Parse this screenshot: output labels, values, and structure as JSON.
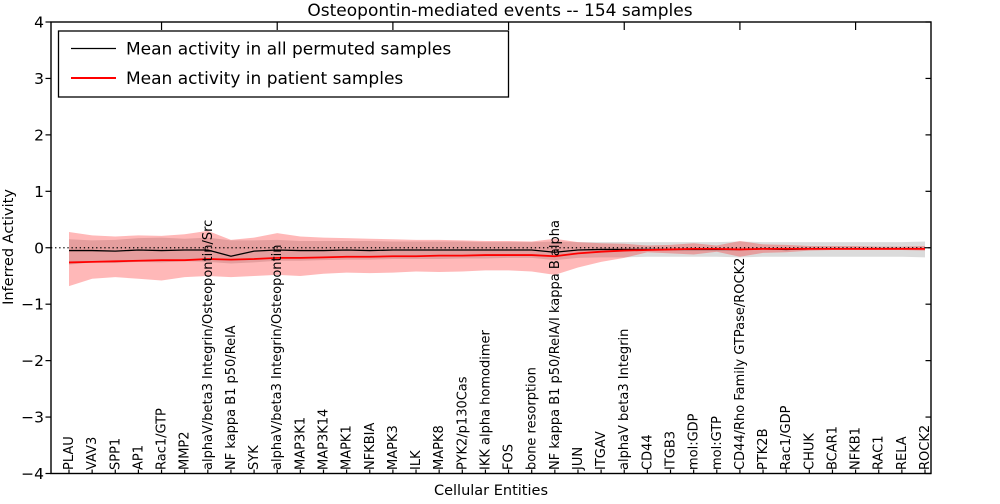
{
  "figure": {
    "title": "Osteopontin-mediated events -- 154 samples",
    "xlabel": "Cellular Entities",
    "ylabel": "Inferred Activity"
  },
  "legend": {
    "entries": [
      {
        "label": "Mean activity in all permuted samples",
        "color": "#000000"
      },
      {
        "label": "Mean activity in patient samples",
        "color": "#ff0000"
      }
    ]
  },
  "chart_data": {
    "type": "line",
    "title": "Osteopontin-mediated events -- 154 samples",
    "xlabel": "Cellular Entities",
    "ylabel": "Inferred Activity",
    "ylim": [
      -4,
      4
    ],
    "yticks": [
      4,
      3,
      2,
      1,
      0,
      -1,
      -2,
      -3,
      -4
    ],
    "ytick_labels": [
      "4",
      "3",
      "2",
      "1",
      "0",
      "−1",
      "−2",
      "−3",
      "−4"
    ],
    "grid": false,
    "legend_position": "upper left",
    "x_tick_label_rotation": 90,
    "top_tick_indices": [
      4,
      9,
      14,
      19,
      24,
      29,
      34
    ],
    "zero_reference_line": {
      "style": "dotted",
      "value": 0,
      "color": "#000000"
    },
    "categories": [
      "PLAU",
      "VAV3",
      "SPP1",
      "AP1",
      "Rac1/GTP",
      "MMP2",
      "alphaV/beta3 Integrin/Osteopontin/Src",
      "NF kappa B1 p50/RelA",
      "SYK",
      "alphaV/beta3 Integrin/Osteopontin",
      "MAP3K1",
      "MAP3K14",
      "MAPK1",
      "NFKBIA",
      "MAPK3",
      "ILK",
      "MAPK8",
      "PYK2/p130Cas",
      "IKK alpha homodimer",
      "FOS",
      "bone resorption",
      "NF kappa B1 p50/RelA/I kappa B alpha",
      "JUN",
      "ITGAV",
      "alphaV beta3 Integrin",
      "CD44",
      "ITGB3",
      "mol:GDP",
      "mol:GTP",
      "CD44/Rho Family GTPase/ROCK2",
      "PTK2B",
      "Rac1/GDP",
      "CHUK",
      "BCAR1",
      "NFKB1",
      "RAC1",
      "RELA",
      "ROCK2"
    ],
    "series": [
      {
        "name": "Permuted samples confidence band",
        "type": "band",
        "color": "#000000",
        "opacity": 0.14,
        "upper": [
          0.15,
          0.13,
          0.14,
          0.17,
          0.18,
          0.16,
          0.18,
          0.13,
          0.13,
          0.14,
          0.12,
          0.12,
          0.12,
          0.12,
          0.11,
          0.11,
          0.11,
          0.11,
          0.1,
          0.1,
          0.1,
          0.11,
          0.1,
          0.1,
          0.1,
          0.1,
          0.1,
          0.1,
          0.1,
          0.11,
          0.1,
          0.1,
          0.1,
          0.1,
          0.1,
          0.1,
          0.1,
          0.11
        ],
        "lower": [
          -0.3,
          -0.26,
          -0.27,
          -0.25,
          -0.26,
          -0.24,
          -0.25,
          -0.28,
          -0.26,
          -0.23,
          -0.23,
          -0.22,
          -0.21,
          -0.21,
          -0.2,
          -0.2,
          -0.2,
          -0.19,
          -0.19,
          -0.18,
          -0.18,
          -0.22,
          -0.18,
          -0.17,
          -0.17,
          -0.16,
          -0.16,
          -0.16,
          -0.16,
          -0.17,
          -0.16,
          -0.16,
          -0.16,
          -0.16,
          -0.16,
          -0.16,
          -0.16,
          -0.17
        ]
      },
      {
        "name": "Patient samples confidence band",
        "type": "band",
        "color": "#ff0000",
        "opacity": 0.28,
        "upper": [
          0.28,
          0.22,
          0.2,
          0.22,
          0.21,
          0.24,
          0.3,
          0.14,
          0.18,
          0.26,
          0.2,
          0.18,
          0.17,
          0.16,
          0.15,
          0.14,
          0.14,
          0.13,
          0.12,
          0.12,
          0.11,
          0.16,
          0.1,
          0.08,
          0.07,
          0.04,
          0.05,
          0.08,
          0.04,
          0.12,
          0.06,
          0.05,
          0.03,
          0.03,
          0.03,
          0.02,
          0.02,
          0.03
        ],
        "lower": [
          -0.68,
          -0.55,
          -0.52,
          -0.55,
          -0.58,
          -0.52,
          -0.5,
          -0.52,
          -0.5,
          -0.48,
          -0.5,
          -0.46,
          -0.44,
          -0.45,
          -0.44,
          -0.42,
          -0.43,
          -0.42,
          -0.4,
          -0.4,
          -0.42,
          -0.48,
          -0.35,
          -0.25,
          -0.18,
          -0.08,
          -0.1,
          -0.12,
          -0.07,
          -0.16,
          -0.09,
          -0.08,
          -0.05,
          -0.04,
          -0.04,
          -0.04,
          -0.04,
          -0.05
        ]
      },
      {
        "name": "Mean activity in all permuted samples",
        "type": "line",
        "color": "#000000",
        "values": [
          -0.05,
          -0.05,
          -0.06,
          -0.04,
          -0.05,
          -0.04,
          -0.04,
          -0.15,
          -0.06,
          -0.04,
          -0.05,
          -0.05,
          -0.04,
          -0.05,
          -0.04,
          -0.04,
          -0.04,
          -0.04,
          -0.04,
          -0.04,
          -0.04,
          -0.08,
          -0.04,
          -0.03,
          -0.03,
          -0.03,
          -0.03,
          -0.03,
          -0.03,
          -0.03,
          -0.02,
          -0.03,
          -0.02,
          -0.02,
          -0.02,
          -0.02,
          -0.02,
          -0.02
        ]
      },
      {
        "name": "Mean activity in patient samples",
        "type": "line",
        "color": "#ff0000",
        "values": [
          -0.26,
          -0.25,
          -0.24,
          -0.23,
          -0.22,
          -0.22,
          -0.2,
          -0.21,
          -0.2,
          -0.18,
          -0.18,
          -0.17,
          -0.16,
          -0.16,
          -0.15,
          -0.15,
          -0.14,
          -0.14,
          -0.13,
          -0.13,
          -0.13,
          -0.15,
          -0.1,
          -0.07,
          -0.05,
          -0.04,
          -0.03,
          -0.02,
          -0.02,
          -0.03,
          -0.02,
          -0.02,
          -0.02,
          -0.02,
          -0.02,
          -0.02,
          -0.02,
          -0.02
        ]
      }
    ]
  }
}
